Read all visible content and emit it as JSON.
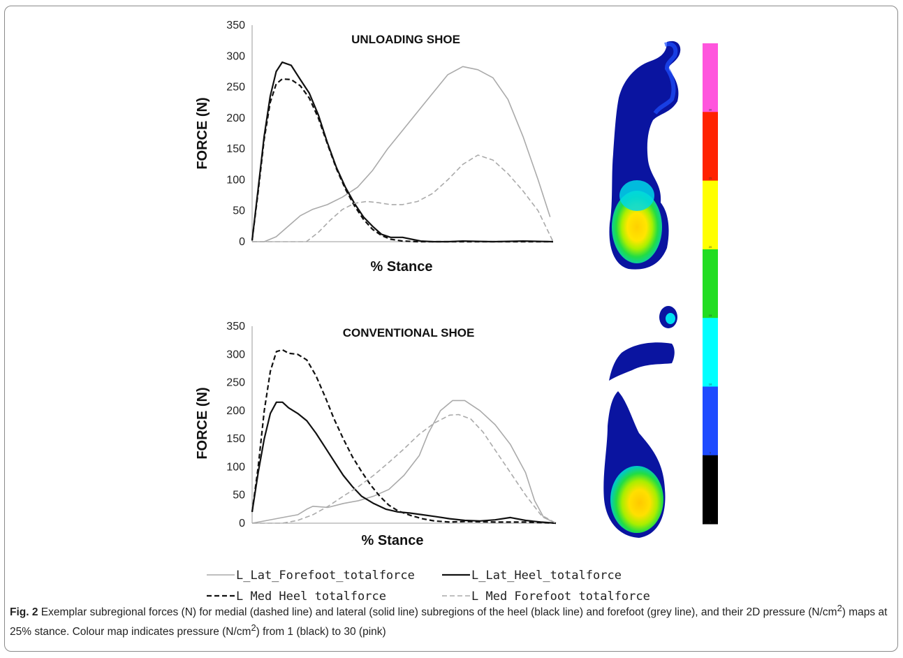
{
  "chart_data": [
    {
      "type": "line",
      "title": "UNLOADING SHOE",
      "xlabel": "% Stance",
      "ylabel": "FORCE (N)",
      "ylim": [
        0,
        350
      ],
      "xlim": [
        0,
        100
      ],
      "yticks": [
        "0",
        "50",
        "100",
        "150",
        "200",
        "250",
        "300",
        "350"
      ],
      "grid": false,
      "series": [
        {
          "name": "L_Lat_Forefoot_totalforce",
          "color": "#aaaaaa",
          "dash": "solid",
          "x": [
            0,
            4,
            8,
            12,
            16,
            20,
            25,
            30,
            35,
            40,
            45,
            50,
            55,
            60,
            65,
            70,
            75,
            80,
            85,
            90,
            95,
            99
          ],
          "y": [
            0,
            0,
            8,
            25,
            42,
            52,
            60,
            72,
            88,
            115,
            150,
            180,
            210,
            240,
            270,
            283,
            278,
            265,
            230,
            170,
            100,
            40
          ]
        },
        {
          "name": "L_Lat_Heel_totalforce",
          "color": "#111111",
          "dash": "solid",
          "x": [
            0,
            2,
            4,
            6,
            8,
            10,
            13,
            16,
            19,
            22,
            25,
            28,
            31,
            34,
            37,
            40,
            43,
            46,
            50,
            53,
            56,
            60,
            65,
            70,
            80,
            90,
            100
          ],
          "y": [
            2,
            85,
            170,
            235,
            275,
            290,
            285,
            262,
            240,
            205,
            160,
            120,
            88,
            62,
            40,
            25,
            12,
            7,
            7,
            4,
            1,
            0,
            0,
            1,
            0,
            1,
            0
          ]
        },
        {
          "name": "L_Med_Heel_totalforce",
          "color": "#111111",
          "dash": "dashed",
          "x": [
            0,
            2,
            4,
            6,
            8,
            10,
            13,
            16,
            19,
            22,
            25,
            28,
            31,
            34,
            37,
            40,
            43,
            46,
            50,
            55,
            100
          ],
          "y": [
            2,
            80,
            165,
            225,
            255,
            263,
            262,
            252,
            232,
            200,
            158,
            118,
            85,
            58,
            36,
            20,
            10,
            4,
            1,
            0,
            0
          ]
        },
        {
          "name": "L_Med_Forefoot_totalforce",
          "color": "#aaaaaa",
          "dash": "dashed",
          "x": [
            0,
            18,
            22,
            26,
            30,
            34,
            38,
            42,
            46,
            50,
            55,
            60,
            65,
            70,
            75,
            80,
            85,
            90,
            95,
            100
          ],
          "y": [
            0,
            0,
            15,
            35,
            52,
            62,
            65,
            63,
            60,
            60,
            65,
            78,
            100,
            125,
            140,
            132,
            110,
            82,
            50,
            0
          ]
        }
      ]
    },
    {
      "type": "line",
      "title": "CONVENTIONAL SHOE",
      "xlabel": "% Stance",
      "ylabel": "FORCE (N)",
      "ylim": [
        0,
        350
      ],
      "xlim": [
        0,
        100
      ],
      "yticks": [
        "0",
        "50",
        "100",
        "150",
        "200",
        "250",
        "300",
        "350"
      ],
      "grid": false,
      "series": [
        {
          "name": "L_Lat_Forefoot_totalforce",
          "color": "#aaaaaa",
          "dash": "solid",
          "x": [
            0,
            5,
            10,
            15,
            18,
            20,
            25,
            30,
            35,
            40,
            45,
            50,
            55,
            58,
            62,
            66,
            70,
            75,
            80,
            85,
            90,
            93,
            96,
            100
          ],
          "y": [
            0,
            5,
            10,
            15,
            25,
            30,
            28,
            35,
            40,
            48,
            60,
            85,
            120,
            160,
            200,
            218,
            218,
            200,
            175,
            140,
            90,
            40,
            10,
            0
          ]
        },
        {
          "name": "L_Lat_Heel_totalforce",
          "color": "#111111",
          "dash": "solid",
          "x": [
            0,
            2,
            4,
            6,
            8,
            10,
            12,
            15,
            18,
            21,
            24,
            27,
            30,
            33,
            36,
            40,
            44,
            48,
            52,
            56,
            60,
            65,
            70,
            75,
            80,
            85,
            90,
            95,
            100
          ],
          "y": [
            20,
            90,
            150,
            195,
            215,
            215,
            205,
            195,
            182,
            160,
            135,
            110,
            85,
            65,
            48,
            35,
            25,
            20,
            18,
            15,
            12,
            8,
            5,
            4,
            6,
            10,
            5,
            2,
            0
          ]
        },
        {
          "name": "L_Med_Heel_totalforce",
          "color": "#111111",
          "dash": "dashed",
          "x": [
            0,
            2,
            4,
            6,
            8,
            10,
            12,
            15,
            18,
            21,
            24,
            27,
            30,
            33,
            36,
            39,
            42,
            45,
            48,
            52,
            56,
            60,
            65,
            70,
            80,
            90,
            100
          ],
          "y": [
            20,
            100,
            200,
            270,
            305,
            308,
            302,
            300,
            290,
            262,
            225,
            185,
            150,
            118,
            92,
            68,
            48,
            32,
            22,
            14,
            8,
            4,
            2,
            3,
            2,
            2,
            0
          ]
        },
        {
          "name": "L_Med_Forefoot_totalforce",
          "color": "#aaaaaa",
          "dash": "dashed",
          "x": [
            0,
            10,
            15,
            20,
            25,
            30,
            35,
            40,
            45,
            50,
            55,
            60,
            65,
            68,
            72,
            76,
            80,
            85,
            90,
            95,
            100
          ],
          "y": [
            0,
            0,
            5,
            15,
            30,
            48,
            65,
            85,
            108,
            132,
            158,
            178,
            192,
            193,
            185,
            162,
            130,
            90,
            50,
            15,
            0
          ]
        }
      ]
    }
  ],
  "legend": {
    "items": [
      {
        "label": "L_Lat_Forefoot_totalforce",
        "color": "#aaaaaa",
        "dash": "solid"
      },
      {
        "label": "L_Lat_Heel_totalforce",
        "color": "#111111",
        "dash": "solid"
      },
      {
        "label": "L_Med_Heel_totalforce",
        "color": "#111111",
        "dash": "dashed"
      },
      {
        "label": "L_Med_Forefoot_totalforce",
        "color": "#aaaaaa",
        "dash": "dashed"
      }
    ]
  },
  "colour_scale": {
    "bands_top_to_bottom": [
      "#ff55dd",
      "#ff2200",
      "#ffff00",
      "#22dd22",
      "#00ffff",
      "#1e4bff",
      "#000000"
    ],
    "tick_labels": [
      "30",
      "25",
      "20",
      "15",
      "10",
      "5",
      "1"
    ]
  },
  "caption": {
    "label": "Fig. 2",
    "text": " Exemplar subregional forces (N) for medial (dashed line) and lateral (solid line) subregions of the heel (black line) and forefoot (grey line), and their 2D pressure (N/cm",
    "sup1": "2",
    "text2": ") maps at 25% stance. Colour map indicates pressure (N/cm",
    "sup2": "2",
    "text3": ") from 1 (black) to 30 (pink)"
  }
}
